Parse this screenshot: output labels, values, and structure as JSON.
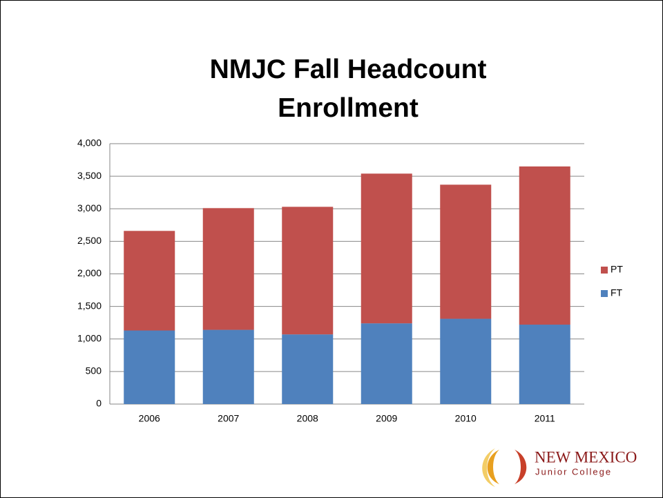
{
  "chart_data": {
    "type": "stacked_bar",
    "title": "NMJC Fall Headcount Enrollment",
    "categories": [
      "2006",
      "2007",
      "2008",
      "2009",
      "2010",
      "2011"
    ],
    "series": [
      {
        "name": "FT",
        "color": "#4f81bd",
        "values": [
          1130,
          1140,
          1070,
          1240,
          1310,
          1220
        ]
      },
      {
        "name": "PT",
        "color": "#c0504d",
        "values": [
          1530,
          1870,
          1960,
          2300,
          2060,
          2430
        ]
      }
    ],
    "ylim": [
      0,
      4000
    ],
    "yticks": [
      0,
      500,
      {
        "value": 1000,
        "label": "1,000"
      },
      {
        "value": 1500,
        "label": "1,500"
      },
      {
        "value": 2000,
        "label": "2,000"
      },
      {
        "value": 2500,
        "label": "2,500"
      },
      {
        "value": 3000,
        "label": "3,000"
      },
      {
        "value": 3500,
        "label": "3,500"
      },
      {
        "value": 4000,
        "label": "4,000"
      }
    ],
    "grid": true,
    "legend": "right"
  },
  "logo": {
    "line1": "NEW MEXICO",
    "line2": "Junior College"
  }
}
